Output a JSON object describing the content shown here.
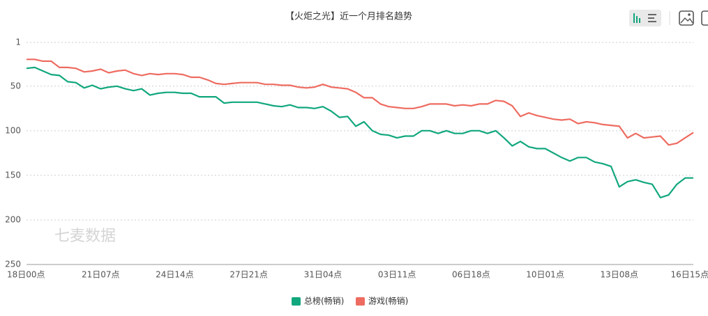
{
  "chart_data": {
    "type": "line",
    "title": "【火炬之光】近一个月排名趋势",
    "watermark": "七麦数据",
    "categories": [
      "18日00点",
      null,
      null,
      null,
      null,
      null,
      null,
      null,
      null,
      "21日07点",
      null,
      null,
      null,
      null,
      null,
      null,
      null,
      null,
      "24日14点",
      null,
      null,
      null,
      null,
      null,
      null,
      null,
      null,
      "27日21点",
      null,
      null,
      null,
      null,
      null,
      null,
      null,
      null,
      "31日04点",
      null,
      null,
      null,
      null,
      null,
      null,
      null,
      null,
      "03日11点",
      null,
      null,
      null,
      null,
      null,
      null,
      null,
      null,
      "06日18点",
      null,
      null,
      null,
      null,
      null,
      null,
      null,
      null,
      "10日01点",
      null,
      null,
      null,
      null,
      null,
      null,
      null,
      null,
      "13日08点",
      null,
      null,
      null,
      null,
      null,
      null,
      null,
      null,
      "16日15点"
    ],
    "series": [
      {
        "name": "总榜(畅销)",
        "color": "#11a77d",
        "values": [
          30,
          29,
          33,
          37,
          38,
          45,
          46,
          52,
          49,
          53,
          51,
          50,
          53,
          55,
          53,
          60,
          58,
          57,
          57,
          58,
          58,
          62,
          62,
          62,
          69,
          68,
          68,
          68,
          68,
          70,
          72,
          73,
          71,
          74,
          74,
          75,
          73,
          78,
          85,
          84,
          95,
          90,
          100,
          104,
          105,
          108,
          106,
          106,
          100,
          100,
          103,
          100,
          103,
          103,
          100,
          100,
          103,
          100,
          108,
          117,
          112,
          118,
          120,
          120,
          125,
          130,
          134,
          130,
          130,
          135,
          137,
          140,
          163,
          157,
          155,
          158,
          160,
          175,
          172,
          160,
          153,
          153
        ]
      },
      {
        "name": "游戏(畅销)",
        "color": "#ee6b60",
        "values": [
          20,
          20,
          22,
          22,
          29,
          29,
          30,
          34,
          33,
          31,
          35,
          33,
          32,
          36,
          38,
          36,
          37,
          36,
          36,
          37,
          40,
          40,
          43,
          47,
          48,
          47,
          46,
          46,
          46,
          48,
          48,
          49,
          49,
          51,
          52,
          51,
          48,
          51,
          52,
          53,
          57,
          63,
          63,
          70,
          73,
          74,
          75,
          75,
          73,
          70,
          70,
          70,
          72,
          71,
          72,
          70,
          70,
          66,
          67,
          72,
          84,
          80,
          83,
          85,
          87,
          88,
          87,
          92,
          90,
          91,
          93,
          94,
          95,
          108,
          103,
          108,
          107,
          106,
          116,
          114,
          108,
          102
        ]
      }
    ],
    "ylim": [
      1,
      250
    ],
    "yticks": [
      1,
      50,
      100,
      150,
      200,
      250
    ],
    "y_inverted": true,
    "grid": true,
    "legend": "bottom"
  }
}
